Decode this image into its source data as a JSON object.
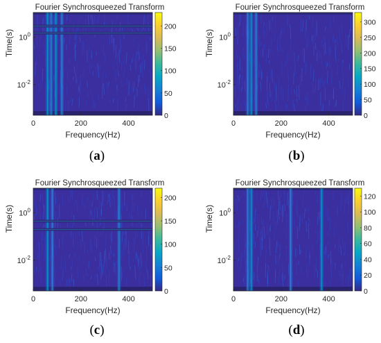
{
  "chart_data": [
    {
      "type": "heatmap",
      "panel_label": "(a)",
      "title": "Fourier Synchrosqueezed Transform",
      "xlabel": "Frequency(Hz)",
      "ylabel": "Time(s)",
      "xlim": [
        0,
        500
      ],
      "x_ticks": [
        0,
        200,
        400
      ],
      "y_scale": "log",
      "y_ticks": [
        "10^0",
        "10^-2"
      ],
      "colorbar": {
        "ticks": [
          0,
          50,
          100,
          150,
          200
        ],
        "max": 230,
        "colormap": "parula"
      },
      "ridges_hz": [
        60,
        75,
        95,
        120
      ],
      "horizontal_bands_time_s": [
        3.0,
        1.5
      ],
      "grid": false
    },
    {
      "type": "heatmap",
      "panel_label": "(b)",
      "title": "Fourier Synchrosqueezed Transform",
      "xlabel": "Frequency(Hz)",
      "ylabel": "Time(s)",
      "xlim": [
        0,
        500
      ],
      "x_ticks": [
        0,
        200,
        400
      ],
      "y_scale": "log",
      "y_ticks": [
        "10^0",
        "10^-2"
      ],
      "colorbar": {
        "ticks": [
          0,
          50,
          100,
          150,
          200,
          250,
          300
        ],
        "max": 330,
        "colormap": "parula"
      },
      "ridges_hz": [
        60,
        75,
        95
      ],
      "horizontal_bands_time_s": [],
      "grid": false
    },
    {
      "type": "heatmap",
      "panel_label": "(c)",
      "title": "Fourier Synchrosqueezed Transform",
      "xlabel": "Frequency(Hz)",
      "ylabel": "Time(s)",
      "xlim": [
        0,
        500
      ],
      "x_ticks": [
        0,
        200,
        400
      ],
      "y_scale": "log",
      "y_ticks": [
        "10^0",
        "10^-2"
      ],
      "colorbar": {
        "ticks": [
          0,
          50,
          100,
          150,
          200
        ],
        "max": 220,
        "colormap": "parula"
      },
      "ridges_hz": [
        60,
        80,
        360
      ],
      "horizontal_bands_time_s": [
        0.45,
        0.2
      ],
      "grid": false
    },
    {
      "type": "heatmap",
      "panel_label": "(d)",
      "title": "Fourier Synchrosqueezed Transform",
      "xlabel": "Frequency(Hz)",
      "ylabel": "Time(s)",
      "xlim": [
        0,
        500
      ],
      "x_ticks": [
        0,
        200,
        400
      ],
      "y_scale": "log",
      "y_ticks": [
        "10^0",
        "10^-2"
      ],
      "colorbar": {
        "ticks": [
          0,
          20,
          40,
          60,
          80,
          100,
          120
        ],
        "max": 130,
        "colormap": "parula"
      },
      "ridges_hz": [
        60,
        75,
        240,
        370
      ],
      "horizontal_bands_time_s": [],
      "grid": false
    }
  ]
}
